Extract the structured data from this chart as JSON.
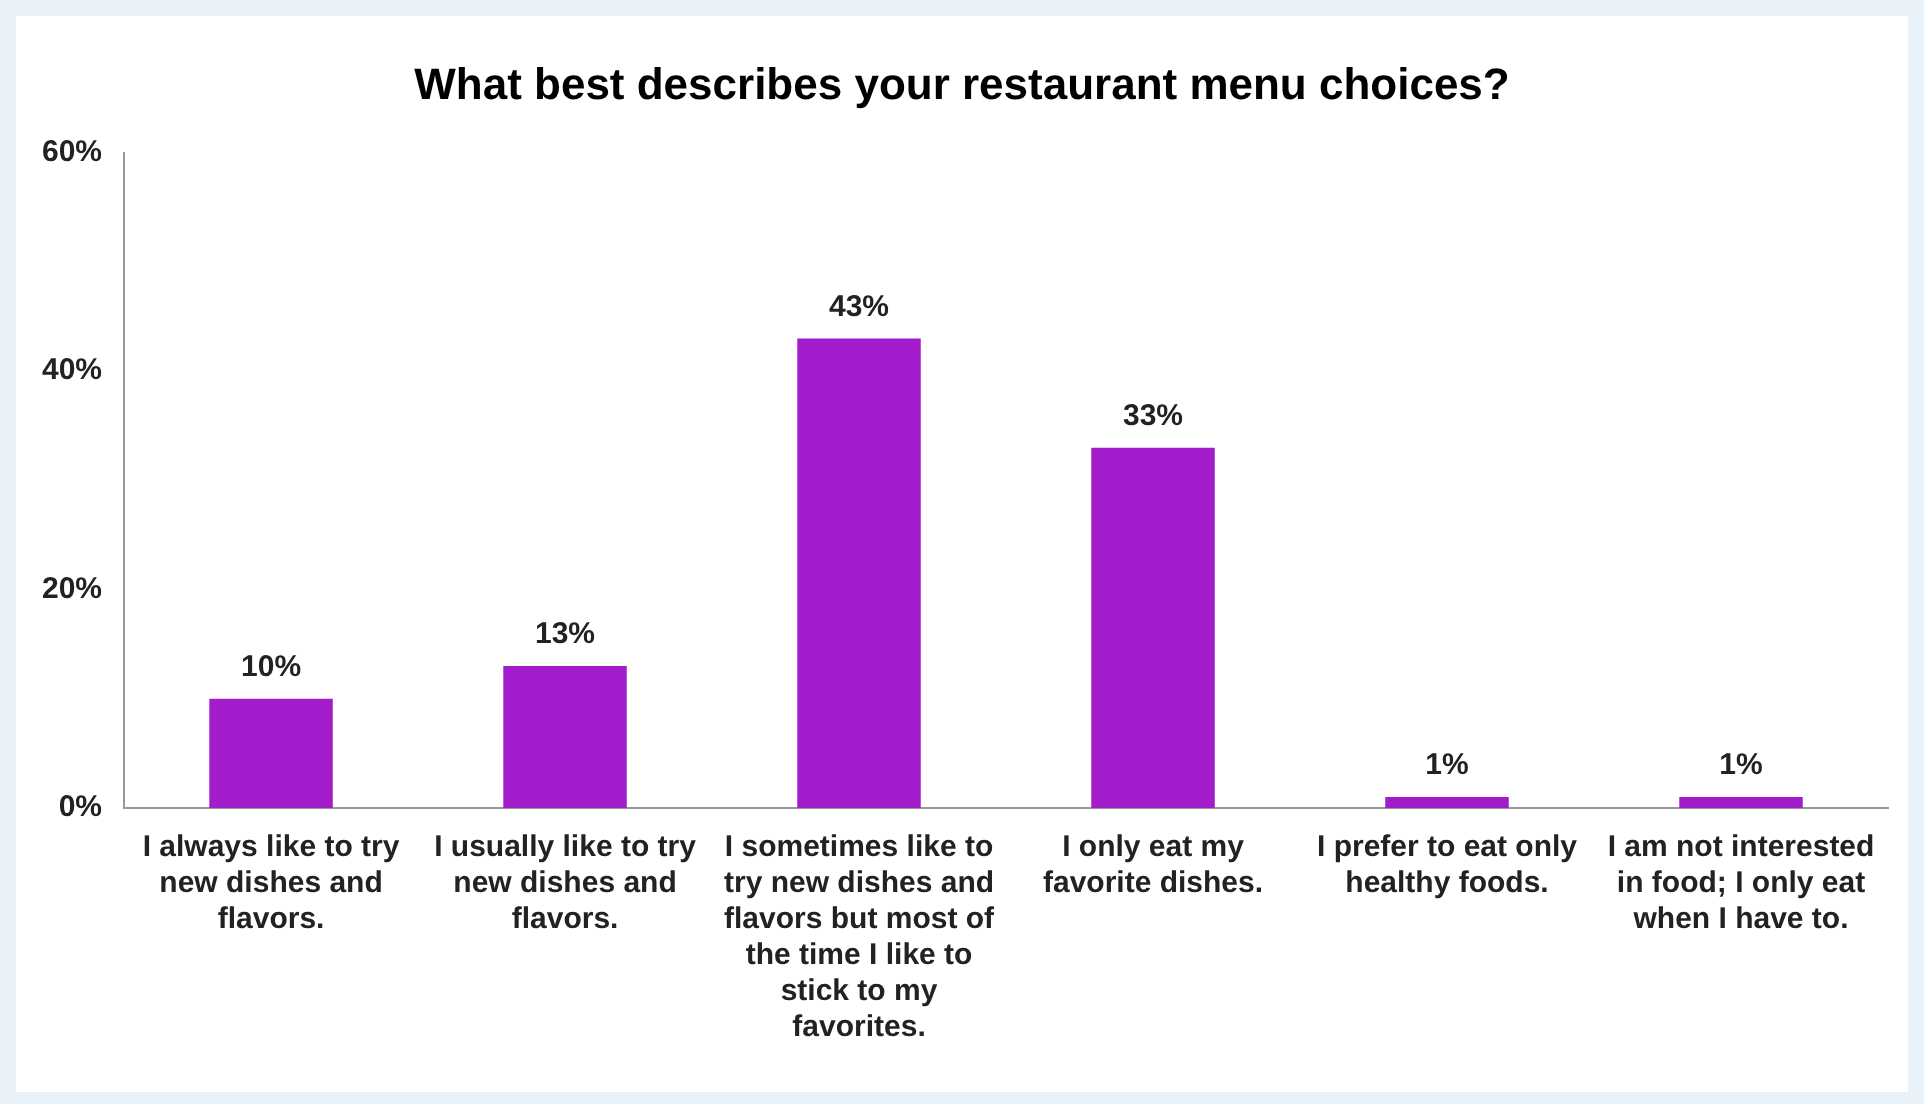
{
  "chart_data": {
    "type": "bar",
    "title": "What best describes your restaurant menu choices?",
    "categories": [
      "I always like to try new dishes and flavors.",
      "I usually like to try new dishes and flavors.",
      "I sometimes like to try new dishes and flavors but most of the time I like to stick to my favorites.",
      "I only eat my favorite dishes.",
      "I prefer to eat only healthy foods.",
      "I am not interested in food; I only eat when I have to."
    ],
    "values": [
      10,
      13,
      43,
      33,
      1,
      1
    ],
    "value_labels": [
      "10%",
      "13%",
      "43%",
      "33%",
      "1%",
      "1%"
    ],
    "color": "#a31ccc",
    "ylim": [
      0,
      60
    ],
    "yticks": [
      {
        "value": 0,
        "label": "0%"
      },
      {
        "value": 20,
        "label": "20%"
      },
      {
        "value": 40,
        "label": "40%"
      },
      {
        "value": 60,
        "label": "60%"
      }
    ],
    "grid": false,
    "legend": false
  }
}
